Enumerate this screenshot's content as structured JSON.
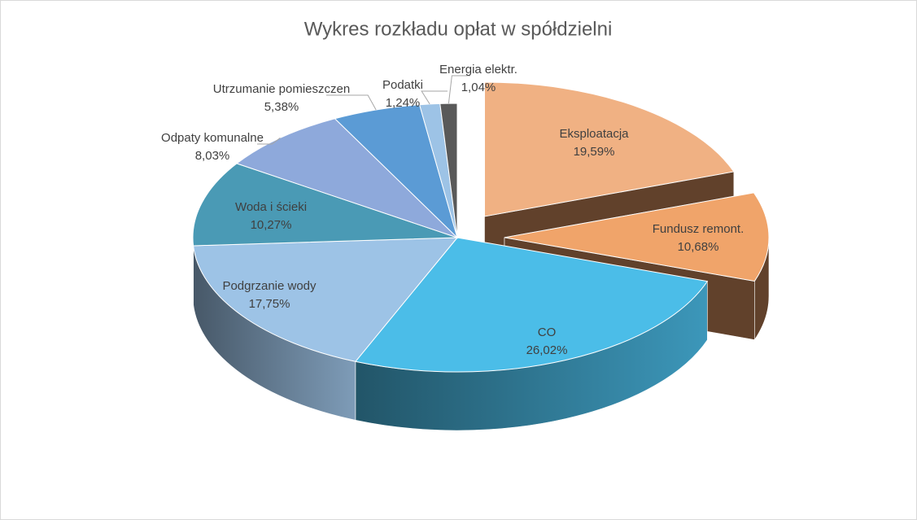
{
  "chart_data": {
    "type": "pie",
    "title": "Wykres rozkładu opłat w spółdzielni",
    "categories": [
      "Eksploatacja",
      "Fundusz remont.",
      "CO",
      "Podgrzanie wody",
      "Woda i ścieki",
      "Odpaty komunalne",
      "Utrzumanie pomieszczen",
      "Podatki",
      "Energia elektr."
    ],
    "values": [
      19.59,
      10.68,
      26.02,
      17.75,
      10.27,
      8.03,
      5.38,
      1.24,
      1.04
    ],
    "value_labels": [
      "19,59%",
      "10,68%",
      "26,02%",
      "17,75%",
      "10,27%",
      "8,03%",
      "5,38%",
      "1,24%",
      "1,04%"
    ],
    "colors": [
      "#f0b183",
      "#f0a46a",
      "#4bbde8",
      "#9dc3e6",
      "#4a9ab5",
      "#8ea9db",
      "#5b9bd5",
      "#9dc3e6",
      "#595959"
    ],
    "exploded": [
      true,
      true,
      false,
      false,
      false,
      false,
      false,
      false,
      false
    ]
  }
}
